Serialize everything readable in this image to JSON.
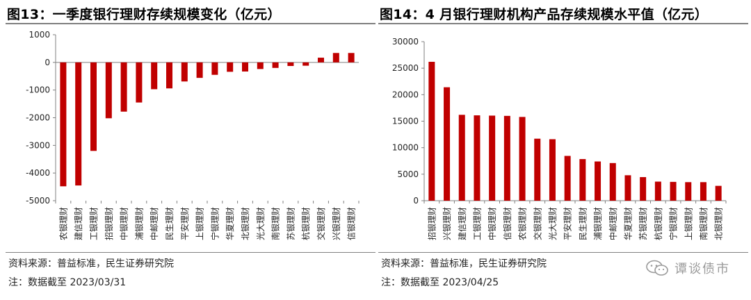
{
  "charts": [
    {
      "notes": {
        "source": "资料来源：普益标准，民生证券研究院",
        "date": "注：数据截至 2023/03/31"
      }
    },
    {
      "notes": {
        "source": "资料来源：普益标准，民生证券研究院",
        "date": "注：数据截至 2023/04/25"
      }
    }
  ],
  "watermark": {
    "text": "谭谈债市"
  },
  "colors": {
    "bar": "#C00000",
    "axis": "#7f7f7f"
  },
  "chart_data": [
    {
      "type": "bar",
      "title": "图13：一季度银行理财存续规模变化（亿元）",
      "xlabel": "",
      "ylabel": "",
      "ylim": [
        -5000,
        1000
      ],
      "yticks": [
        1000,
        0,
        -1000,
        -2000,
        -3000,
        -4000,
        -5000
      ],
      "categories": [
        "农银理财",
        "建信理财",
        "工银理财",
        "招银理财",
        "中银理财",
        "浦银理财",
        "中邮理财",
        "民生理财",
        "平安理财",
        "上银理财",
        "宁银理财",
        "华夏理财",
        "北银理财",
        "光大理财",
        "南银理财",
        "苏银理财",
        "杭银理财",
        "交银理财",
        "兴银理财",
        "信银理财"
      ],
      "values": [
        -4480,
        -4450,
        -3200,
        -2020,
        -1780,
        -1450,
        -970,
        -940,
        -690,
        -560,
        -450,
        -340,
        -330,
        -240,
        -200,
        -130,
        -120,
        170,
        340,
        340
      ]
    },
    {
      "type": "bar",
      "title": "图14：4 月银行理财机构产品存续规模水平值（亿元）",
      "xlabel": "",
      "ylabel": "",
      "ylim": [
        0,
        30000
      ],
      "yticks": [
        30000,
        25000,
        20000,
        15000,
        10000,
        5000,
        0
      ],
      "categories": [
        "招银理财",
        "兴银理财",
        "建信理财",
        "工银理财",
        "中银理财",
        "信银理财",
        "农银理财",
        "交银理财",
        "光大理财",
        "平安理财",
        "民生理财",
        "浦银理财",
        "中邮理财",
        "华夏理财",
        "苏银理财",
        "杭银理财",
        "宁银理财",
        "上银理财",
        "南银理财",
        "北银理财"
      ],
      "values": [
        26200,
        21400,
        16200,
        16100,
        16050,
        16000,
        15800,
        11700,
        11600,
        8450,
        7850,
        7400,
        7100,
        4800,
        4450,
        3600,
        3550,
        3500,
        3500,
        2800
      ]
    }
  ]
}
